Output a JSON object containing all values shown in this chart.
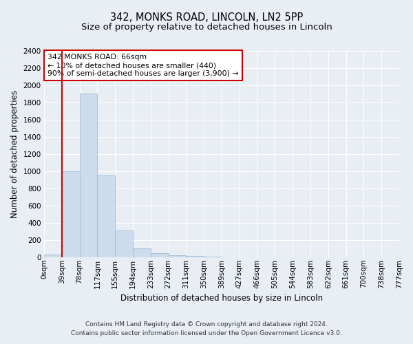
{
  "title": "342, MONKS ROAD, LINCOLN, LN2 5PP",
  "subtitle": "Size of property relative to detached houses in Lincoln",
  "xlabel": "Distribution of detached houses by size in Lincoln",
  "ylabel": "Number of detached properties",
  "bins": [
    "0sqm",
    "39sqm",
    "78sqm",
    "117sqm",
    "155sqm",
    "194sqm",
    "233sqm",
    "272sqm",
    "311sqm",
    "350sqm",
    "389sqm",
    "427sqm",
    "466sqm",
    "505sqm",
    "544sqm",
    "583sqm",
    "622sqm",
    "661sqm",
    "700sqm",
    "738sqm",
    "777sqm"
  ],
  "bar_values": [
    30,
    1000,
    1900,
    950,
    310,
    100,
    45,
    22,
    12,
    5,
    0,
    0,
    0,
    0,
    0,
    0,
    0,
    0,
    0,
    0
  ],
  "bar_color": "#ccdcec",
  "bar_edge_color": "#9fbdd4",
  "ylim": [
    0,
    2400
  ],
  "yticks": [
    0,
    200,
    400,
    600,
    800,
    1000,
    1200,
    1400,
    1600,
    1800,
    2000,
    2200,
    2400
  ],
  "property_bin_index": 1,
  "red_line_color": "#cc0000",
  "annotation_text": "342 MONKS ROAD: 66sqm\n← 10% of detached houses are smaller (440)\n90% of semi-detached houses are larger (3,900) →",
  "annotation_box_color": "#ffffff",
  "annotation_box_edge": "#cc0000",
  "footnote1": "Contains HM Land Registry data © Crown copyright and database right 2024.",
  "footnote2": "Contains public sector information licensed under the Open Government Licence v3.0.",
  "background_color": "#e8eef4",
  "grid_color": "#ffffff",
  "title_fontsize": 10.5,
  "subtitle_fontsize": 9.5,
  "axis_label_fontsize": 8.5,
  "tick_fontsize": 7.5,
  "footnote_fontsize": 6.5
}
